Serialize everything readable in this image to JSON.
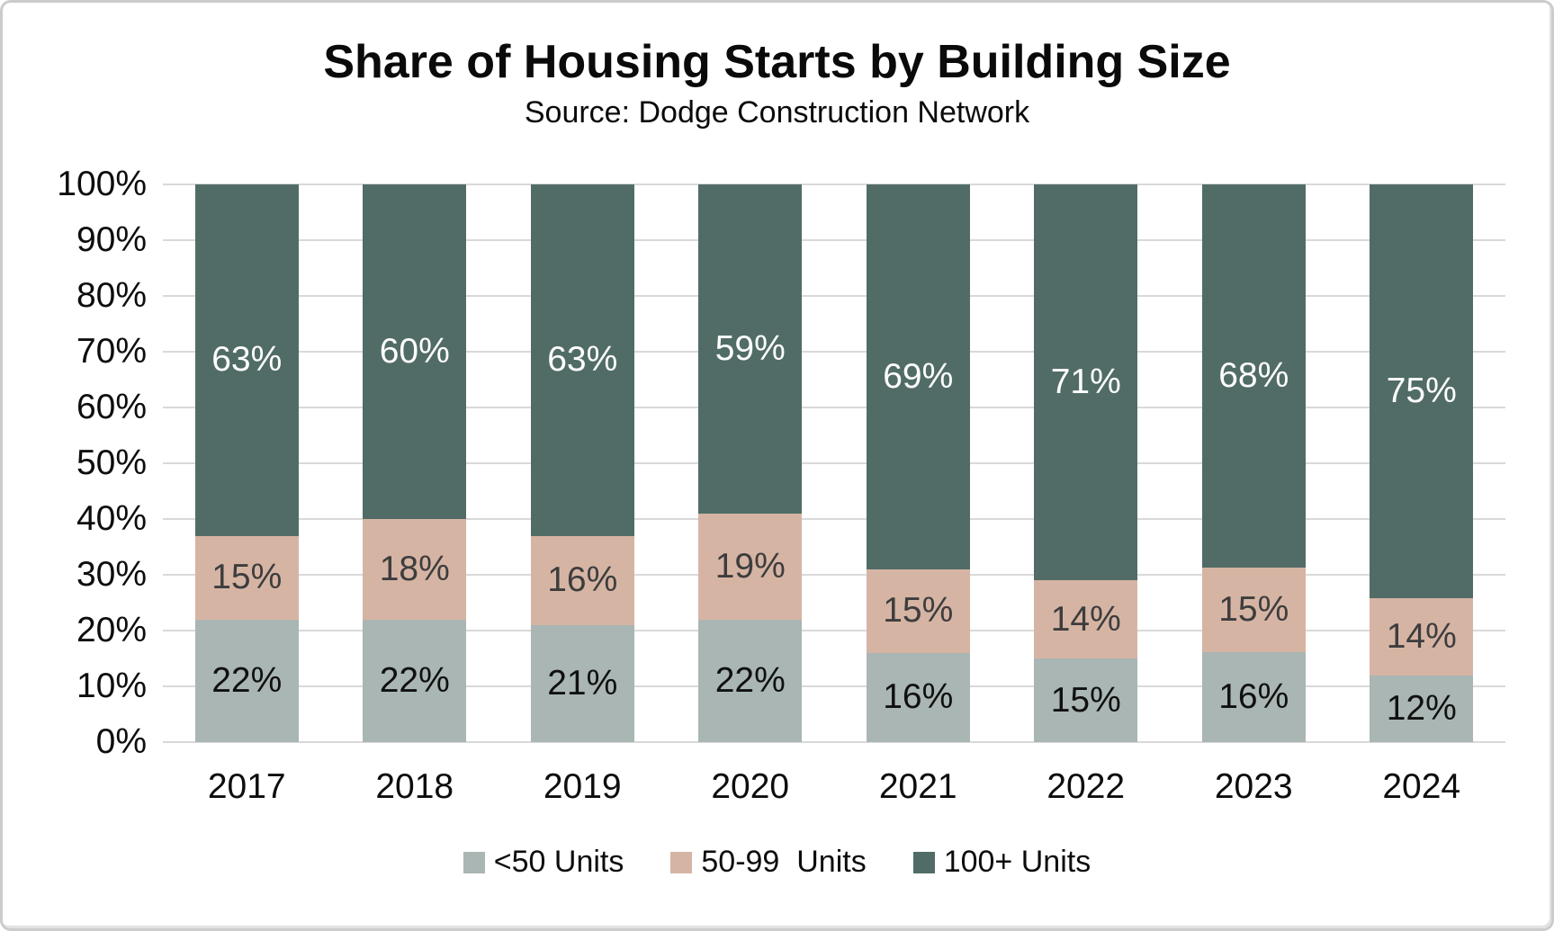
{
  "chart": {
    "title": "Share of Housing Starts by Building Size",
    "subtitle": "Source: Dodge Construction Network"
  },
  "chart_data": {
    "type": "bar",
    "stacked": true,
    "stacked_total": 100,
    "categories": [
      "2017",
      "2018",
      "2019",
      "2020",
      "2021",
      "2022",
      "2023",
      "2024"
    ],
    "series": [
      {
        "name": "<50 Units",
        "color": "#A9B6B3",
        "label_color": "#101010",
        "values": [
          22,
          22,
          21,
          22,
          16,
          15,
          16,
          12
        ]
      },
      {
        "name": "50-99  Units",
        "color": "#D6B4A4",
        "label_color": "#3D3D3D",
        "values": [
          15,
          18,
          16,
          19,
          15,
          14,
          15,
          14
        ]
      },
      {
        "name": "100+ Units",
        "color": "#516C66",
        "label_color": "#FFFFFF",
        "values": [
          63,
          60,
          63,
          59,
          69,
          71,
          68,
          75
        ]
      }
    ],
    "value_suffix": "%",
    "yticks": [
      "100%",
      "90%",
      "80%",
      "70%",
      "60%",
      "50%",
      "40%",
      "30%",
      "20%",
      "10%",
      "0%"
    ],
    "ylim": [
      0,
      100
    ],
    "grid": true,
    "gridline_color": "#D9D9D9",
    "legend_position": "bottom",
    "title": "Share of Housing Starts by Building Size",
    "xlabel": "",
    "ylabel": ""
  }
}
